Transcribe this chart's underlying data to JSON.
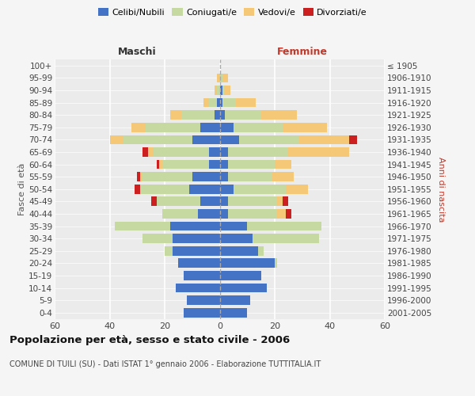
{
  "age_groups": [
    "0-4",
    "5-9",
    "10-14",
    "15-19",
    "20-24",
    "25-29",
    "30-34",
    "35-39",
    "40-44",
    "45-49",
    "50-54",
    "55-59",
    "60-64",
    "65-69",
    "70-74",
    "75-79",
    "80-84",
    "85-89",
    "90-94",
    "95-99",
    "100+"
  ],
  "birth_years": [
    "2001-2005",
    "1996-2000",
    "1991-1995",
    "1986-1990",
    "1981-1985",
    "1976-1980",
    "1971-1975",
    "1966-1970",
    "1961-1965",
    "1956-1960",
    "1951-1955",
    "1946-1950",
    "1941-1945",
    "1936-1940",
    "1931-1935",
    "1926-1930",
    "1921-1925",
    "1916-1920",
    "1911-1915",
    "1906-1910",
    "≤ 1905"
  ],
  "males_celibe": [
    13,
    12,
    16,
    13,
    15,
    17,
    17,
    18,
    8,
    7,
    11,
    10,
    4,
    4,
    10,
    7,
    2,
    1,
    0,
    0,
    0
  ],
  "males_coniugato": [
    0,
    0,
    0,
    0,
    0,
    3,
    11,
    20,
    13,
    16,
    18,
    18,
    17,
    20,
    25,
    20,
    12,
    3,
    1,
    0,
    0
  ],
  "males_vedovo": [
    0,
    0,
    0,
    0,
    0,
    0,
    0,
    0,
    0,
    0,
    0,
    1,
    1,
    2,
    5,
    5,
    4,
    2,
    1,
    1,
    0
  ],
  "males_divorziato": [
    0,
    0,
    0,
    0,
    0,
    0,
    0,
    0,
    0,
    2,
    2,
    1,
    1,
    2,
    0,
    0,
    0,
    0,
    0,
    0,
    0
  ],
  "females_nubile": [
    10,
    11,
    17,
    15,
    20,
    14,
    12,
    10,
    3,
    3,
    5,
    3,
    3,
    3,
    7,
    5,
    2,
    1,
    1,
    0,
    0
  ],
  "females_coniugata": [
    0,
    0,
    0,
    0,
    1,
    2,
    24,
    27,
    18,
    18,
    19,
    16,
    17,
    22,
    22,
    18,
    13,
    5,
    1,
    1,
    0
  ],
  "females_vedova": [
    0,
    0,
    0,
    0,
    0,
    0,
    0,
    0,
    3,
    2,
    8,
    8,
    6,
    22,
    18,
    16,
    13,
    7,
    2,
    2,
    0
  ],
  "females_divorziata": [
    0,
    0,
    0,
    0,
    0,
    0,
    0,
    0,
    2,
    2,
    0,
    0,
    0,
    0,
    3,
    0,
    0,
    0,
    0,
    0,
    0
  ],
  "color_celibe": "#4472C4",
  "color_coniugato": "#c5d9a0",
  "color_vedovo": "#f5c878",
  "color_divorziato": "#cc2020",
  "xlim": 60,
  "title": "Popolazione per età, sesso e stato civile - 2006",
  "subtitle": "COMUNE DI TUILI (SU) - Dati ISTAT 1° gennaio 2006 - Elaborazione TUTTITALIA.IT",
  "ylabel_left": "Fasce di età",
  "ylabel_right": "Anni di nascita",
  "label_maschi": "Maschi",
  "label_femmine": "Femmine",
  "legend_labels": [
    "Celibi/Nubili",
    "Coniugati/e",
    "Vedovi/e",
    "Divorziati/e"
  ],
  "bg_color": "#f5f5f5",
  "plot_bg": "#ebebeb"
}
